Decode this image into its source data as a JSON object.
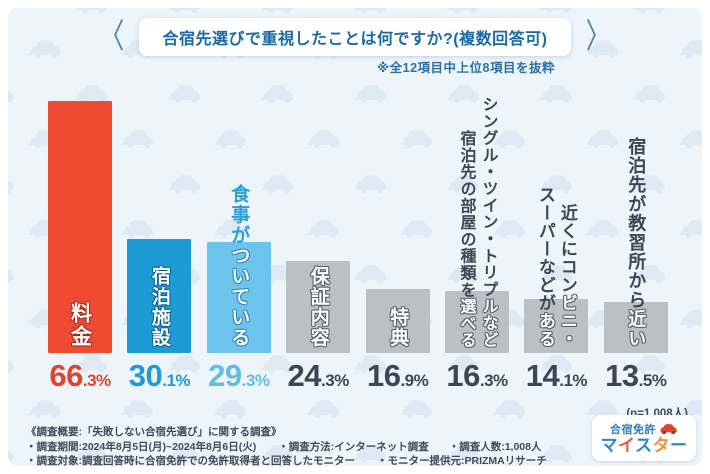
{
  "header": {
    "title": "合宿先選びで重視したことは何ですか?(複数回答可)",
    "subtitle": "※全12項目中上位8項目を抜粋",
    "chevron_left": "〈",
    "chevron_right": "〉"
  },
  "chart_data": {
    "type": "bar",
    "title": "合宿先選びで重視したことは何ですか?(複数回答可)",
    "note": "※全12項目中上位8項目を抜粋",
    "unit": "%",
    "n_label": "(n=1,008人)",
    "ylim": [
      0,
      70
    ],
    "grid": false,
    "categories": [
      "料金",
      "宿泊施設",
      "食事がついている",
      "保証内容",
      "特典",
      "シングル・ツイン・トリプルなど宿泊先の部屋の種類を選べる",
      "近くにコンビニ・スーパーなどがある",
      "宿泊先が教習所から近い"
    ],
    "values": [
      66.3,
      30.1,
      29.3,
      24.3,
      16.9,
      16.3,
      14.1,
      13.5
    ],
    "bars": [
      {
        "label": "料金",
        "value": 66.3,
        "color": "#ef4a32",
        "percent_color": "#e04330",
        "outline": "rgba(160,40,20,0.6)",
        "font": 21,
        "ls": 2,
        "columns": [
          [
            {
              "t": "料金",
              "c": "white"
            }
          ]
        ]
      },
      {
        "label": "宿泊施設",
        "value": 30.1,
        "color": "#1b9cd6",
        "percent_color": "#1e9ad6",
        "outline": "rgba(15,90,140,0.55)",
        "font": 19,
        "ls": 1.5,
        "columns": [
          [
            {
              "t": "宿泊施設",
              "c": "white"
            }
          ]
        ]
      },
      {
        "label": "食事がついている",
        "value": 29.3,
        "color": "#6cc3ec",
        "percent_color": "#62bce8",
        "outline": "rgba(25,120,175,0.5)",
        "font": 19,
        "ls": 1.5,
        "columns": [
          [
            {
              "t": "食事が",
              "c": "blue"
            },
            {
              "t": "ついている",
              "c": "white"
            }
          ]
        ]
      },
      {
        "label": "保証内容",
        "value": 24.3,
        "color": "#bcbfc3",
        "percent_color": "#3b4754",
        "outline": "rgba(85,95,110,0.8)",
        "font": 19,
        "ls": 1.5,
        "columns": [
          [
            {
              "t": "保証内容",
              "c": "white"
            }
          ]
        ]
      },
      {
        "label": "特典",
        "value": 16.9,
        "color": "#bcbfc3",
        "percent_color": "#3b4754",
        "outline": "rgba(85,95,110,0.8)",
        "font": 19,
        "ls": 1.5,
        "columns": [
          [
            {
              "t": "特典",
              "c": "white"
            }
          ]
        ]
      },
      {
        "label": "シングル・ツイン・トリプルなど宿泊先の部屋の種類を選べる",
        "value": 16.3,
        "color": "#bcbfc3",
        "percent_color": "#3b4754",
        "outline": "rgba(85,95,110,0.8)",
        "font": 16,
        "ls": 0.8,
        "columns": [
          [
            {
              "t": "シングル・ツイン・トリプ",
              "c": "navy"
            },
            {
              "t": "ルなど",
              "c": "white"
            }
          ],
          [
            {
              "t": "宿泊先の部屋の種類を",
              "c": "navy"
            },
            {
              "t": "選べる",
              "c": "white"
            }
          ]
        ]
      },
      {
        "label": "近くにコンビニ・スーパーなどがある",
        "value": 14.1,
        "color": "#bcbfc3",
        "percent_color": "#3b4754",
        "outline": "rgba(85,95,110,0.8)",
        "font": 17,
        "ls": 1,
        "columns": [
          [
            {
              "t": "近くにコン",
              "c": "navy"
            },
            {
              "t": "ビニ・",
              "c": "white"
            }
          ],
          [
            {
              "t": "スーパーなどが",
              "c": "navy"
            },
            {
              "t": "ある",
              "c": "white"
            }
          ]
        ]
      },
      {
        "label": "宿泊先が教習所から近い",
        "value": 13.5,
        "color": "#bcbfc3",
        "percent_color": "#3b4754",
        "outline": "rgba(85,95,110,0.8)",
        "font": 18,
        "ls": 1.2,
        "columns": [
          [
            {
              "t": "宿泊先が教習所から",
              "c": "navy"
            },
            {
              "t": "近い",
              "c": "white"
            }
          ]
        ]
      }
    ]
  },
  "footer": {
    "line1": "《調査概要:「失敗しない合宿先選び」に関する調査》",
    "line2a": "・調査期間:2024年8月5日(月)~2024年8月6日(火)",
    "line2b": "・調査方法:インターネット調査",
    "line2c": "・調査人数:1,008人",
    "line3a": "・調査対象:調査回答時に合宿免許での免許取得者と回答したモニター",
    "line3b": "・モニター提供元:PRIZMAリサーチ"
  },
  "logo": {
    "top": "合宿免許",
    "main_chars": [
      {
        "t": "マ",
        "c": "#2f87c8"
      },
      {
        "t": "イ",
        "c": "#e2574c"
      },
      {
        "t": "ス",
        "c": "#2f87c8"
      },
      {
        "t": "タ",
        "c": "#ef8f35"
      },
      {
        "t": "ー",
        "c": "#2f87c8"
      }
    ]
  },
  "colors": {
    "background": "#edf4fa",
    "pattern": "#dfe9f3",
    "title_blue": "#1a6aa6",
    "navy_text": "#3b4754",
    "red_bar": "#ef4a32",
    "blue_bar": "#1b9cd6",
    "light_blue_bar": "#6cc3ec",
    "gray_bar": "#bcbfc3"
  }
}
